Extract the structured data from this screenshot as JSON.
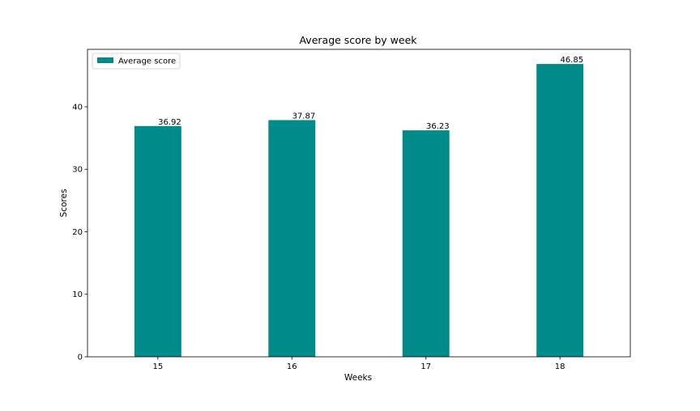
{
  "chart_data": {
    "type": "bar",
    "title": "Average score by week",
    "xlabel": "Weeks",
    "ylabel": "Scores",
    "categories": [
      "15",
      "16",
      "17",
      "18"
    ],
    "series": [
      {
        "name": "Average score",
        "values": [
          36.92,
          37.87,
          36.23,
          46.85
        ],
        "color": "#008B8B"
      }
    ],
    "data_labels": [
      "36.92",
      "37.87",
      "36.23",
      "46.85"
    ],
    "ylim": [
      0,
      49.19
    ],
    "yticks": [
      0,
      10,
      20,
      30,
      40
    ],
    "grid": false,
    "legend_position": "top-left"
  }
}
